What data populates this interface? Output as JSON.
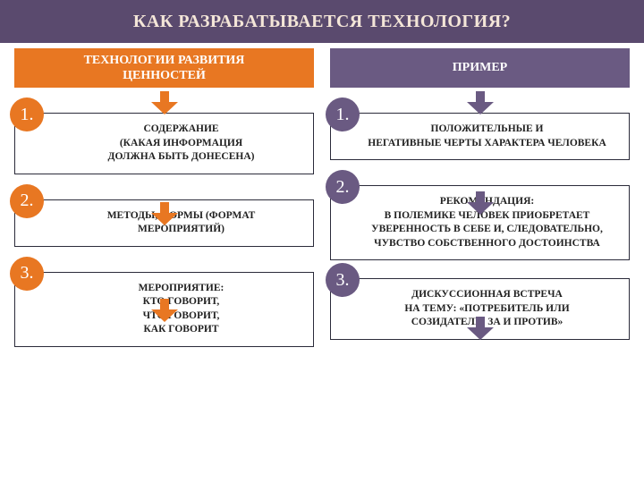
{
  "colors": {
    "header_bg": "#5a4a6e",
    "header_text": "#f4e6d8",
    "purple": "#6a5a82",
    "orange": "#e87722",
    "box_border": "#2b2b3a",
    "text": "#222222"
  },
  "header": {
    "title": "КАК РАЗРАБАТЫВАЕТСЯ ТЕХНОЛОГИЯ?",
    "fontsize": 20
  },
  "left": {
    "subtitle": "ТЕХНОЛОГИИ РАЗВИТИЯ\nЦЕННОСТЕЙ",
    "items": [
      {
        "num": "1.",
        "text": "СОДЕРЖАНИЕ\n(КАКАЯ ИНФОРМАЦИЯ\nДОЛЖНА БЫТЬ ДОНЕСЕНА)"
      },
      {
        "num": "2.",
        "text": "МЕТОДЫ, ФОРМЫ (ФОРМАТ\nМЕРОПРИЯТИЙ)"
      },
      {
        "num": "3.",
        "text": "МЕРОПРИЯТИЕ:\nКТО ГОВОРИТ,\nЧТО ГОВОРИТ,\nКАК ГОВОРИТ"
      }
    ],
    "arrow_color": "#e87722",
    "badge_color": "#e87722"
  },
  "right": {
    "subtitle": "ПРИМЕР",
    "items": [
      {
        "num": "1.",
        "text": "ПОЛОЖИТЕЛЬНЫЕ И\nНЕГАТИВНЫЕ ЧЕРТЫ ХАРАКТЕРА ЧЕЛОВЕКА"
      },
      {
        "num": "2.",
        "text": "РЕКОМЕНДАЦИЯ:\nВ ПОЛЕМИКЕ ЧЕЛОВЕК ПРИОБРЕТАЕТ\nУВЕРЕННОСТЬ В СЕБЕ И, СЛЕДОВАТЕЛЬНО,\nЧУВСТВО СОБСТВЕННОГО ДОСТОИНСТВА"
      },
      {
        "num": "3.",
        "text": "ДИСКУССИОННАЯ ВСТРЕЧА\nНА ТЕМУ:  «ПОТРЕБИТЕЛЬ  ИЛИ\nСОЗИДАТЕЛЬ: ЗА И ПРОТИВ»"
      }
    ],
    "arrow_color": "#6a5a82",
    "badge_color": "#6a5a82"
  },
  "arrow": {
    "width": 30,
    "height": 26
  }
}
